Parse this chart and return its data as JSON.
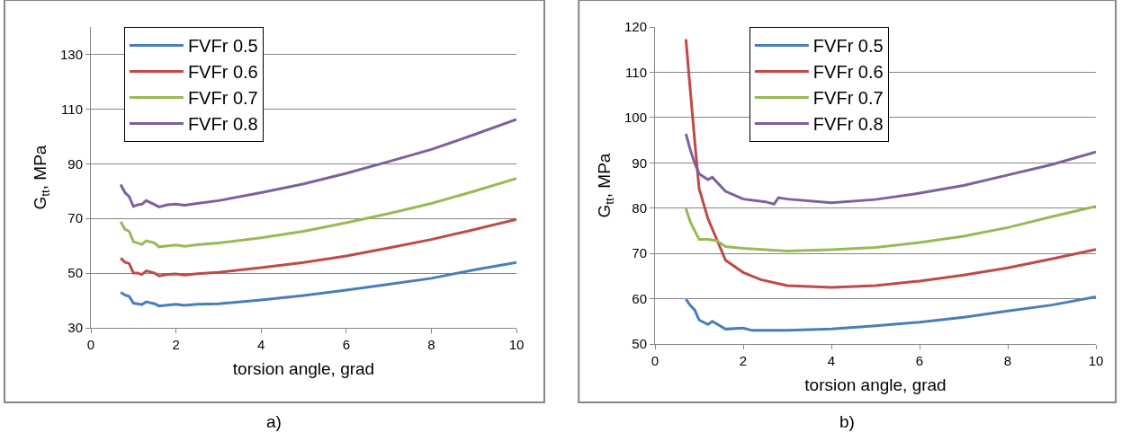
{
  "chart_data": [
    {
      "type": "line",
      "xlabel": "torsion angle, grad",
      "ylabel": "G$_{tt}$, MPa",
      "xlim": [
        0,
        10
      ],
      "xticks": [
        0,
        2,
        4,
        6,
        8,
        10
      ],
      "ylim": [
        30,
        140
      ],
      "yticks": [
        30,
        50,
        70,
        90,
        110,
        130
      ],
      "grid": "y",
      "legend": "top left",
      "annotations": [
        "a)"
      ],
      "series": [
        {
          "name": "FVFr 0.5",
          "color": "#4a7ebb",
          "x": [
            0.7,
            0.8,
            0.9,
            1.0,
            1.1,
            1.2,
            1.3,
            1.5,
            1.6,
            1.8,
            2.0,
            2.2,
            2.5,
            3,
            4,
            5,
            6,
            7,
            8,
            9,
            10
          ],
          "values": [
            43,
            42,
            41.5,
            39,
            38.8,
            38.5,
            39.5,
            38.8,
            38,
            38.3,
            38.6,
            38.2,
            38.6,
            38.8,
            40.2,
            41.8,
            43.8,
            45.9,
            48.1,
            51.2,
            53.9
          ]
        },
        {
          "name": "FVFr 0.6",
          "color": "#be4b48",
          "x": [
            0.7,
            0.8,
            0.9,
            1.0,
            1.1,
            1.2,
            1.3,
            1.5,
            1.6,
            1.8,
            2.0,
            2.2,
            2.5,
            3,
            4,
            5,
            6,
            7,
            8,
            9,
            10
          ],
          "values": [
            55.5,
            54,
            53.5,
            50,
            50,
            49.5,
            50.8,
            50,
            49,
            49.5,
            49.7,
            49.3,
            49.8,
            50.3,
            52,
            53.9,
            56.3,
            59.2,
            62.3,
            65.9,
            69.7
          ]
        },
        {
          "name": "FVFr 0.7",
          "color": "#98b954",
          "x": [
            0.7,
            0.8,
            0.9,
            1.0,
            1.1,
            1.2,
            1.3,
            1.5,
            1.6,
            1.8,
            2.0,
            2.2,
            2.5,
            3,
            4,
            5,
            6,
            7,
            8,
            9,
            10
          ],
          "values": [
            68.8,
            66,
            65.3,
            61.5,
            61,
            60.5,
            61.8,
            61,
            59.6,
            60,
            60.3,
            59.8,
            60.4,
            61,
            62.9,
            65.3,
            68.4,
            71.8,
            75.5,
            79.9,
            84.6
          ]
        },
        {
          "name": "FVFr 0.8",
          "color": "#7d60a0",
          "x": [
            0.7,
            0.8,
            0.9,
            1.0,
            1.1,
            1.2,
            1.3,
            1.5,
            1.6,
            1.8,
            2.0,
            2.2,
            2.5,
            3,
            4,
            5,
            6,
            7,
            8,
            9,
            10
          ],
          "values": [
            82.4,
            79.5,
            78,
            74.4,
            75,
            75.2,
            76.5,
            75,
            74.2,
            75,
            75.2,
            74.8,
            75.5,
            76.5,
            79.4,
            82.6,
            86.5,
            90.8,
            95.2,
            100.6,
            106.2
          ]
        }
      ]
    },
    {
      "type": "line",
      "xlabel": "torsion angle, grad",
      "ylabel": "G$_{tt}$, MPa",
      "xlim": [
        0,
        10
      ],
      "xticks": [
        0,
        2,
        4,
        6,
        8,
        10
      ],
      "ylim": [
        50,
        120
      ],
      "yticks": [
        50,
        60,
        70,
        80,
        90,
        100,
        110,
        120
      ],
      "grid": "y",
      "legend": "top left",
      "annotations": [
        "b)"
      ],
      "series": [
        {
          "name": "FVFr 0.5",
          "color": "#4a7ebb",
          "x": [
            0.7,
            0.8,
            0.9,
            1.0,
            1.2,
            1.3,
            1.6,
            2.0,
            2.2,
            3,
            4,
            5,
            6,
            7,
            8,
            9,
            10
          ],
          "values": [
            59.9,
            58.5,
            57.5,
            55.3,
            54.3,
            55,
            53.3,
            53.5,
            53,
            53,
            53.3,
            54,
            54.8,
            55.9,
            57.3,
            58.6,
            60.4
          ]
        },
        {
          "name": "FVFr 0.6",
          "color": "#be4b48",
          "x": [
            0.7,
            0.8,
            0.9,
            1.0,
            1.2,
            1.4,
            1.6,
            2.0,
            2.4,
            3,
            4,
            5,
            6,
            7,
            8,
            9,
            10
          ],
          "values": [
            117.3,
            106,
            94.9,
            84.3,
            77.7,
            73.1,
            68.5,
            65.8,
            64.2,
            62.9,
            62.5,
            62.9,
            63.9,
            65.2,
            66.8,
            68.8,
            70.9
          ]
        },
        {
          "name": "FVFr 0.7",
          "color": "#98b954",
          "x": [
            0.7,
            0.8,
            0.9,
            1.0,
            1.2,
            1.4,
            1.6,
            2.0,
            3,
            4,
            5,
            6,
            7,
            8,
            9,
            10
          ],
          "values": [
            79.9,
            77,
            75,
            73.1,
            73.1,
            72.8,
            71.5,
            71.1,
            70.5,
            70.8,
            71.3,
            72.4,
            73.8,
            75.7,
            78.1,
            80.4
          ]
        },
        {
          "name": "FVFr 0.8",
          "color": "#7d60a0",
          "x": [
            0.7,
            0.8,
            0.9,
            1.0,
            1.2,
            1.3,
            1.6,
            2.0,
            2.5,
            2.7,
            2.8,
            3,
            4,
            5,
            6,
            7,
            8,
            9,
            10
          ],
          "values": [
            96.4,
            92.9,
            89.9,
            87.6,
            86.3,
            86.8,
            83.7,
            82,
            81.4,
            80.9,
            82.3,
            82,
            81.2,
            81.9,
            83.3,
            85,
            87.3,
            89.6,
            92.4
          ]
        }
      ]
    }
  ]
}
